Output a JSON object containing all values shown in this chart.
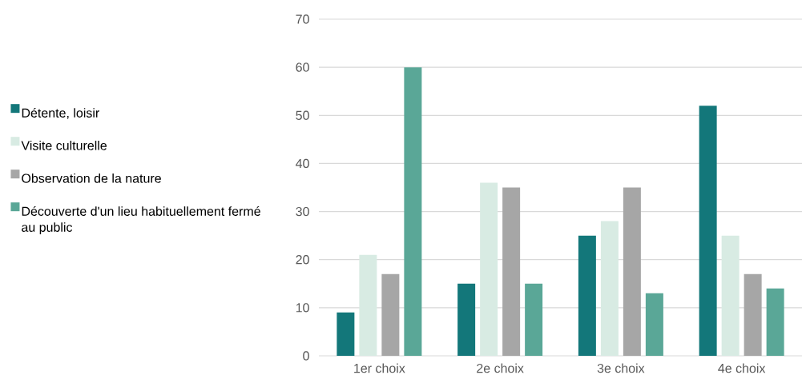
{
  "chart_data": {
    "type": "bar",
    "categories": [
      "1er choix",
      "2e choix",
      "3e choix",
      "4e choix"
    ],
    "series": [
      {
        "name": "Détente, loisir",
        "color": "#13777a",
        "values": [
          9,
          15,
          25,
          52
        ]
      },
      {
        "name": "Visite culturelle",
        "color": "#d8ebe3",
        "values": [
          21,
          36,
          28,
          25
        ]
      },
      {
        "name": "Observation de la nature",
        "color": "#a6a6a6",
        "values": [
          17,
          35,
          35,
          17
        ]
      },
      {
        "name": "Découverte d'un lieu habituellement fermé au public",
        "color": "#5aa797",
        "values": [
          60,
          15,
          13,
          14
        ]
      }
    ],
    "ylim": [
      0,
      70
    ],
    "yticks": [
      0,
      10,
      20,
      30,
      40,
      50,
      60,
      70
    ],
    "grid": "y",
    "legend": "left"
  }
}
